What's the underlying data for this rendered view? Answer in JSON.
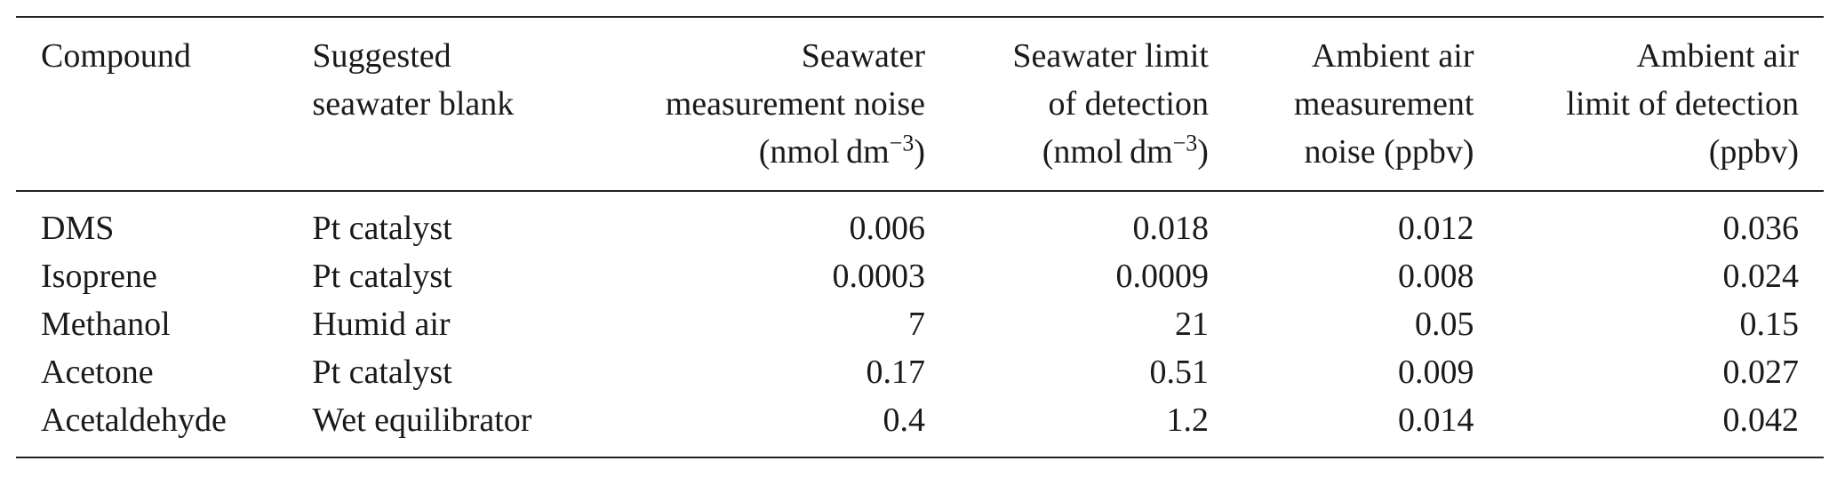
{
  "table": {
    "headers": [
      {
        "lines": [
          "Compound"
        ]
      },
      {
        "lines": [
          "Suggested",
          "seawater blank"
        ]
      },
      {
        "lines": [
          "Seawater",
          "measurement noise",
          "(nmol dm"
        ],
        "sup": "−3",
        "after": ")"
      },
      {
        "lines": [
          "Seawater limit",
          "of detection",
          "(nmol dm"
        ],
        "sup": "−3",
        "after": ")"
      },
      {
        "lines": [
          "Ambient air",
          "measurement",
          "noise (ppbv)"
        ]
      },
      {
        "lines": [
          "Ambient air",
          "limit of detection",
          "(ppbv)"
        ]
      }
    ],
    "rows": [
      [
        "DMS",
        "Pt catalyst",
        "0.006",
        "0.018",
        "0.012",
        "0.036"
      ],
      [
        "Isoprene",
        "Pt catalyst",
        "0.0003",
        "0.0009",
        "0.008",
        "0.024"
      ],
      [
        "Methanol",
        "Humid air",
        "7",
        "21",
        "0.05",
        "0.15"
      ],
      [
        "Acetone",
        "Pt catalyst",
        "0.17",
        "0.51",
        "0.009",
        "0.027"
      ],
      [
        "Acetaldehyde",
        "Wet equilibrator",
        "0.4",
        "1.2",
        "0.014",
        "0.042"
      ]
    ]
  }
}
